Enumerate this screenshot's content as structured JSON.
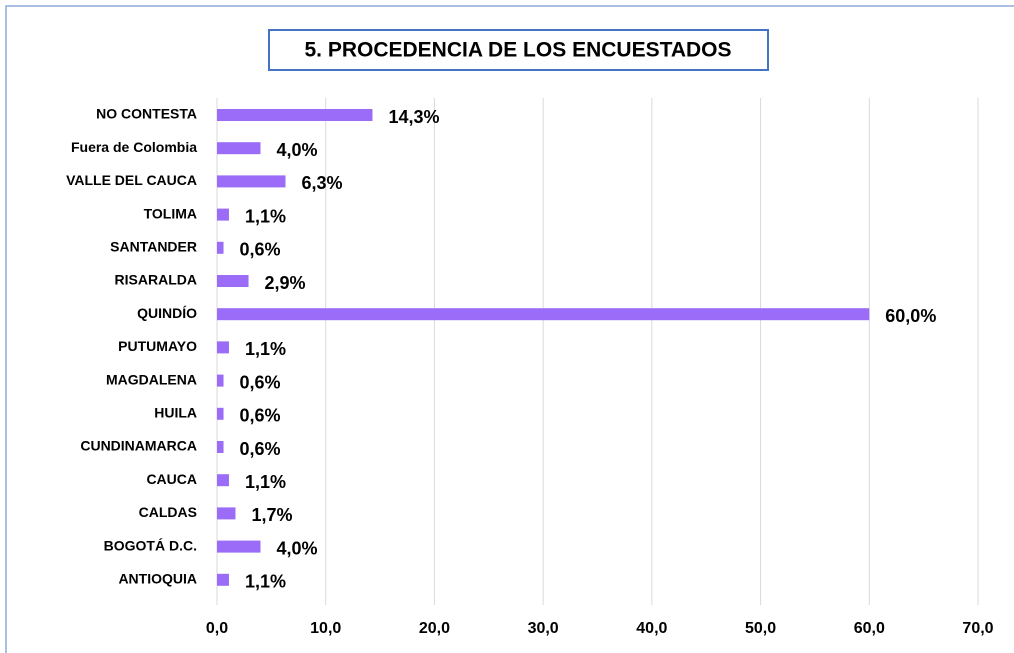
{
  "chart_data": {
    "type": "bar",
    "orientation": "horizontal",
    "title": "5. PROCEDENCIA DE LOS ENCUESTADOS",
    "categories": [
      "NO CONTESTA",
      "Fuera de Colombia",
      "VALLE DEL CAUCA",
      "TOLIMA",
      "SANTANDER",
      "RISARALDA",
      "QUINDÍO",
      "PUTUMAYO",
      "MAGDALENA",
      "HUILA",
      "CUNDINAMARCA",
      "CAUCA",
      "CALDAS",
      "BOGOTÁ D.C.",
      "ANTIOQUIA"
    ],
    "values": [
      14.3,
      4.0,
      6.3,
      1.1,
      0.6,
      2.9,
      60.0,
      1.1,
      0.6,
      0.6,
      0.6,
      1.1,
      1.7,
      4.0,
      1.1
    ],
    "value_labels": [
      "14,3%",
      "4,0%",
      "6,3%",
      "1,1%",
      "0,6%",
      "2,9%",
      "60,0%",
      "1,1%",
      "0,6%",
      "0,6%",
      "0,6%",
      "1,1%",
      "1,7%",
      "4,0%",
      "1,1%"
    ],
    "color": "#9b6cf7",
    "xlim": [
      0,
      70
    ],
    "xticks": [
      {
        "value": 0,
        "label": "0,0"
      },
      {
        "value": 10,
        "label": "10,0"
      },
      {
        "value": 20,
        "label": "20,0"
      },
      {
        "value": 30,
        "label": "30,0"
      },
      {
        "value": 40,
        "label": "40,0"
      },
      {
        "value": 50,
        "label": "50,0"
      },
      {
        "value": 60,
        "label": "60,0"
      },
      {
        "value": 70,
        "label": "70,0"
      }
    ],
    "grid": true
  }
}
